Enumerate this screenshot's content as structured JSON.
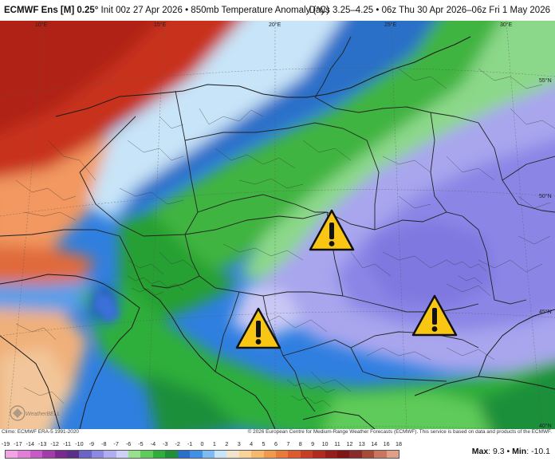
{
  "header": {
    "model": "ECMWF Ens [M] 0.25°",
    "init": "Init 00z 27 Apr 2026",
    "variable": "850mb Temperature Anomaly (°C)",
    "valid": "Days 3.25–4.25 • 06z Thu 30 Apr 2026–06z Fri 1 May 2026"
  },
  "map": {
    "lon_labels": [
      "10°E",
      "15°E",
      "20°E",
      "25°E",
      "30°E"
    ],
    "lat_labels": [
      "55°N",
      "50°N",
      "45°N",
      "40°N"
    ],
    "warnings": [
      {
        "icon": "warning-triangle-icon",
        "region": "Slovakia / Poland border"
      },
      {
        "icon": "warning-triangle-icon",
        "region": "Serbia / Bosnia"
      },
      {
        "icon": "warning-triangle-icon",
        "region": "Southern Romania"
      }
    ],
    "watermark": "WeatherBELL",
    "colors": {
      "warm": "#d73a1a",
      "green": "#3fb43f",
      "lavender": "#a9a6ee",
      "blue": "#2f7fe0"
    }
  },
  "credits": {
    "left": "Climo: ECMWF ERA-5 1991-2020",
    "right": "© 2026 European Centre for Medium-Range Weather Forecasts (ECMWF). This service is based on data and products of the ECMWF."
  },
  "legend": {
    "ticks": [
      "-19",
      "-17",
      "-14",
      "-13",
      "-12",
      "-11",
      "-10",
      "-9",
      "-8",
      "-7",
      "-6",
      "-5",
      "-4",
      "-3",
      "-2",
      "-1",
      "0",
      "1",
      "2",
      "3",
      "4",
      "5",
      "6",
      "7",
      "8",
      "9",
      "10",
      "11",
      "12",
      "13",
      "14",
      "16",
      "18"
    ],
    "colors": [
      "#f2a3e6",
      "#e07fd6",
      "#c85ac8",
      "#a13da8",
      "#7a2a8e",
      "#5a2f8a",
      "#6a64c8",
      "#8c8ae0",
      "#b0aef0",
      "#d0cff5",
      "#96e08e",
      "#5fcb5a",
      "#2fae3a",
      "#1f8f3a",
      "#2a6fc8",
      "#3f90e6",
      "#7cbcf2",
      "#c8e4f8",
      "#f2e4cc",
      "#f8d49c",
      "#f7b86c",
      "#f29a4c",
      "#e87a3a",
      "#dc5a2e",
      "#c83e24",
      "#b02a1e",
      "#951e1a",
      "#7e1414",
      "#8a2a2a",
      "#a84a3a",
      "#c8765e",
      "#e0a088"
    ],
    "max_label": "Max",
    "max_value": "9.3",
    "min_label": "Min",
    "min_value": "-10.1"
  }
}
